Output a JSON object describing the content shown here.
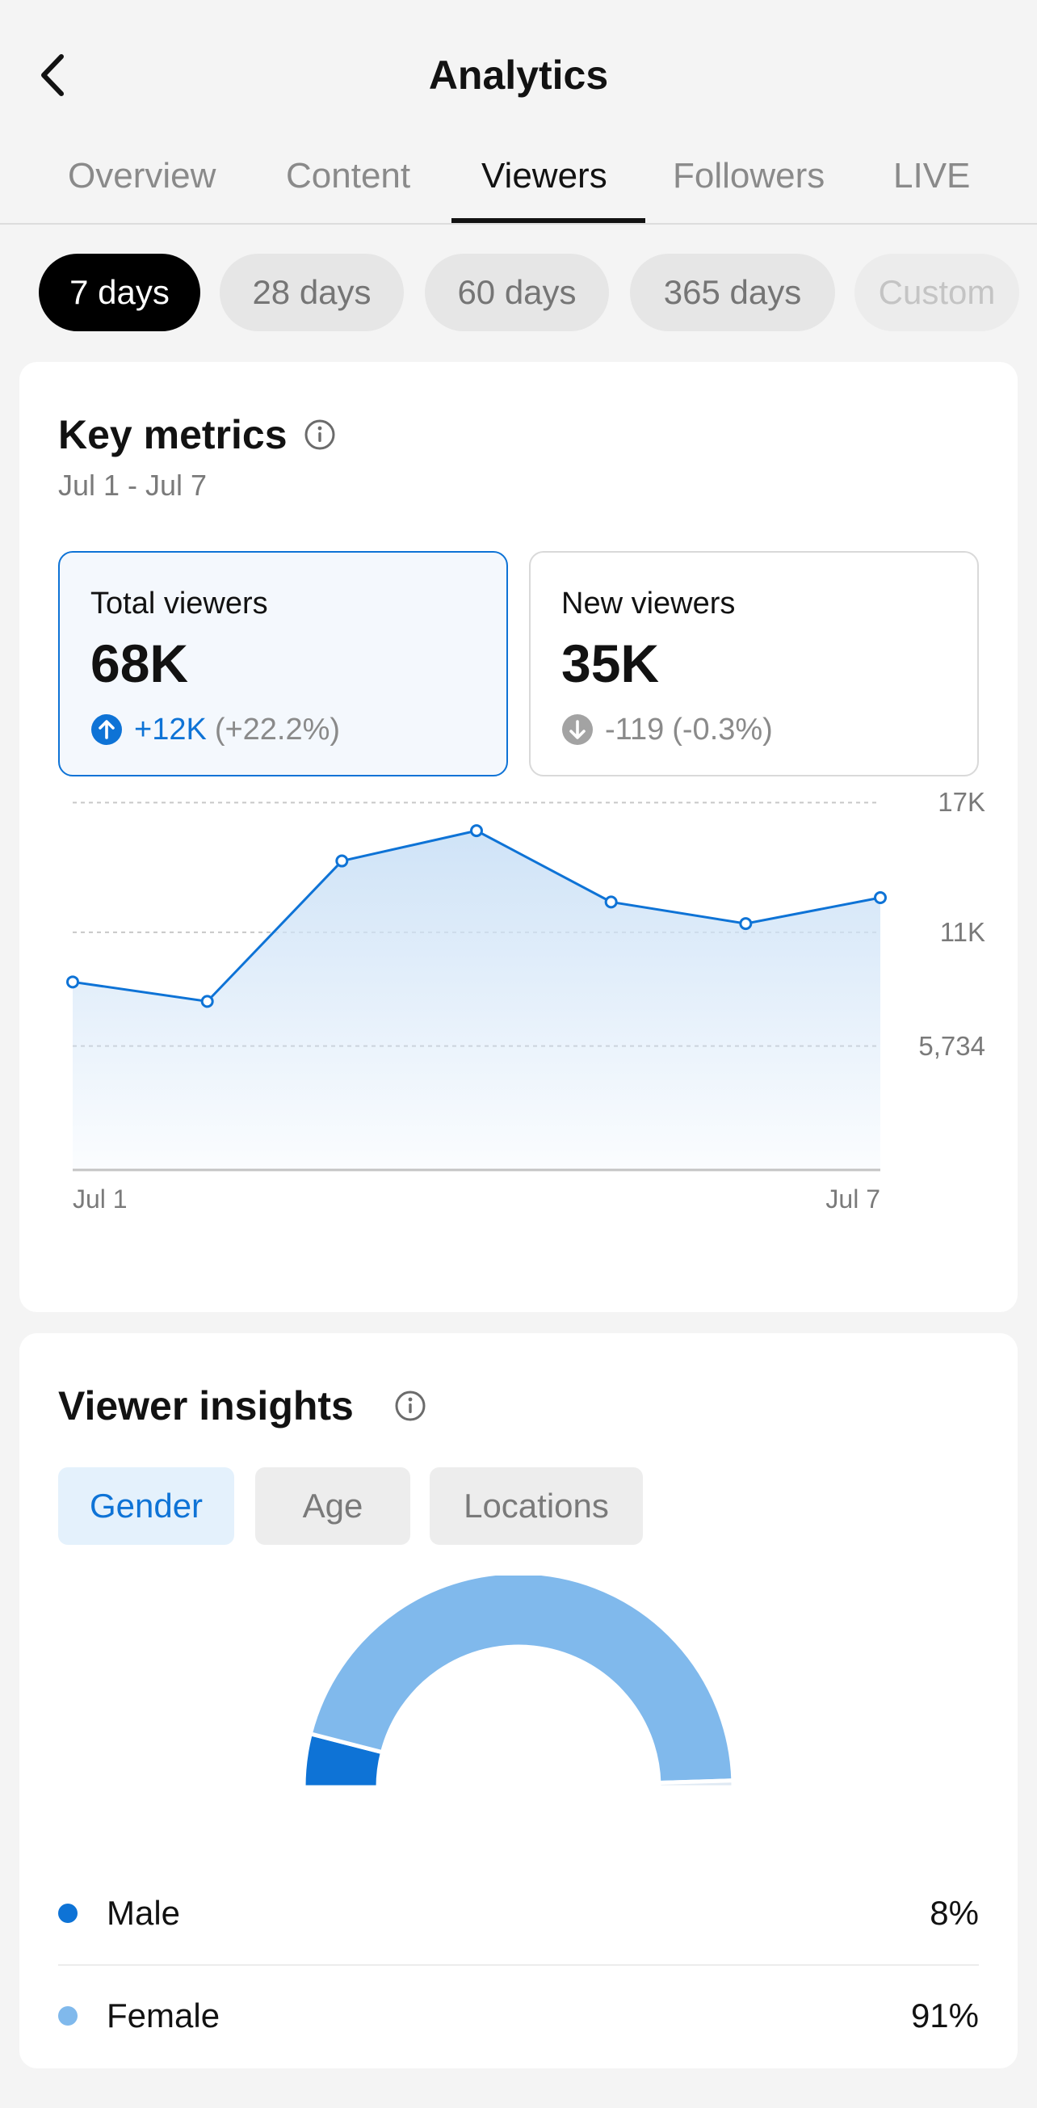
{
  "header": {
    "title": "Analytics"
  },
  "tabs": [
    {
      "label": "Overview",
      "active": false
    },
    {
      "label": "Content",
      "active": false
    },
    {
      "label": "Viewers",
      "active": true
    },
    {
      "label": "Followers",
      "active": false
    },
    {
      "label": "LIVE",
      "active": false
    }
  ],
  "periods": [
    {
      "label": "7 days",
      "selected": true
    },
    {
      "label": "28 days",
      "selected": false
    },
    {
      "label": "60 days",
      "selected": false
    },
    {
      "label": "365 days",
      "selected": false
    },
    {
      "label": "Custom",
      "selected": false,
      "disabled": true
    }
  ],
  "key_metrics": {
    "title": "Key metrics",
    "date_range": "Jul 1 - Jul 7",
    "total": {
      "label": "Total viewers",
      "value": "68K",
      "delta": "+12K",
      "pct": "(+22.2%)",
      "direction": "up"
    },
    "new": {
      "label": "New viewers",
      "value": "35K",
      "delta": "-119",
      "pct": "(-0.3%)",
      "direction": "down"
    }
  },
  "chart_data": {
    "type": "area",
    "x": [
      "Jul 1",
      "Jul 2",
      "Jul 3",
      "Jul 4",
      "Jul 5",
      "Jul 6",
      "Jul 7"
    ],
    "x_tick_labels": [
      "Jul 1",
      "Jul 7"
    ],
    "y_tick_labels": [
      "17K",
      "11K",
      "5,734"
    ],
    "y_ticks": [
      17000,
      11000,
      5734
    ],
    "ylim": [
      0,
      17200
    ],
    "series": [
      {
        "values": [
          8700,
          7800,
          14300,
          15700,
          12400,
          11400,
          12600
        ]
      }
    ],
    "grid": true,
    "colors": {
      "line": "#0e73d6",
      "fill": "#cfe3f7"
    }
  },
  "insights": {
    "title": "Viewer insights",
    "tabs": [
      {
        "label": "Gender",
        "active": true
      },
      {
        "label": "Age",
        "active": false
      },
      {
        "label": "Locations",
        "active": false
      }
    ],
    "gender": [
      {
        "name": "Male",
        "value": "8%",
        "fraction": 0.08,
        "color": "#0e73d6"
      },
      {
        "name": "Female",
        "value": "91%",
        "fraction": 0.91,
        "color": "#80b9ec"
      },
      {
        "fraction": 0.01,
        "color": "#dfe9f3"
      }
    ]
  },
  "icons": {
    "back": "chevron-left-icon",
    "info": "info-icon",
    "up": "arrow-up-circle-icon",
    "down": "arrow-down-circle-icon"
  }
}
